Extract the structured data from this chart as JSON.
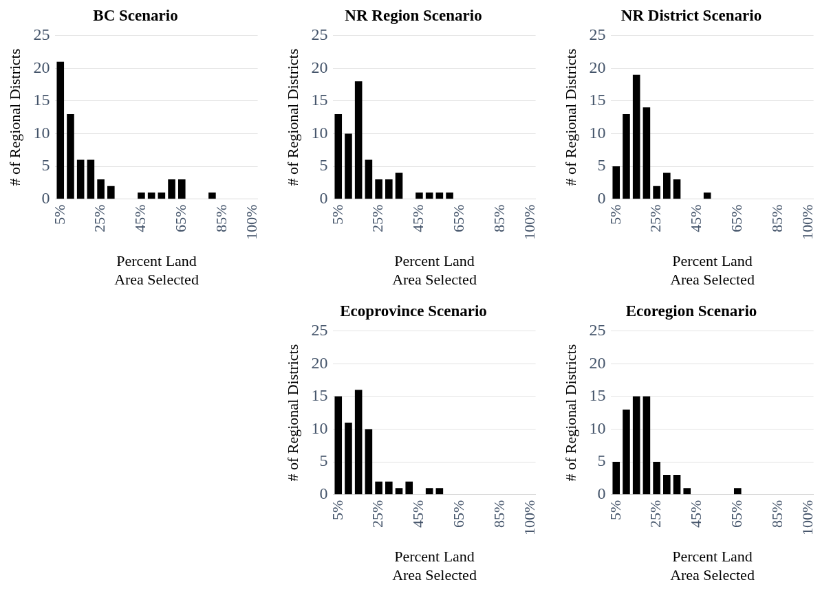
{
  "chart_data": [
    {
      "type": "bar",
      "title": "BC Scenario",
      "xlabel": "Percent Land Area Selected",
      "ylabel": "# of Regional Districts",
      "categories": [
        "5%",
        null,
        null,
        null,
        "25%",
        null,
        null,
        null,
        "45%",
        null,
        null,
        null,
        "65%",
        null,
        null,
        null,
        "85%",
        null,
        null,
        "100%"
      ],
      "values": [
        21,
        13,
        6,
        6,
        3,
        2,
        0,
        0,
        1,
        1,
        1,
        3,
        3,
        0,
        0,
        1,
        0,
        0,
        0,
        0
      ],
      "color": "#000000",
      "ylim": [
        0,
        25
      ],
      "yticks": [
        0,
        5,
        10,
        15,
        20,
        25
      ],
      "grid": "y"
    },
    {
      "type": "bar",
      "title": "NR Region Scenario",
      "xlabel": "Percent Land Area Selected",
      "ylabel": "# of Regional Districts",
      "categories": [
        "5%",
        null,
        null,
        null,
        "25%",
        null,
        null,
        null,
        "45%",
        null,
        null,
        null,
        "65%",
        null,
        null,
        null,
        "85%",
        null,
        null,
        "100%"
      ],
      "values": [
        13,
        10,
        18,
        6,
        3,
        3,
        4,
        0,
        1,
        1,
        1,
        1,
        0,
        0,
        0,
        0,
        0,
        0,
        0,
        0
      ],
      "color": "#000000",
      "ylim": [
        0,
        25
      ],
      "yticks": [
        0,
        5,
        10,
        15,
        20,
        25
      ],
      "grid": "y"
    },
    {
      "type": "bar",
      "title": "NR District Scenario",
      "xlabel": "Percent Land Area Selected",
      "ylabel": "# of Regional Districts",
      "categories": [
        "5%",
        null,
        null,
        null,
        "25%",
        null,
        null,
        null,
        "45%",
        null,
        null,
        null,
        "65%",
        null,
        null,
        null,
        "85%",
        null,
        null,
        "100%"
      ],
      "values": [
        5,
        13,
        19,
        14,
        2,
        4,
        3,
        0,
        0,
        1,
        0,
        0,
        0,
        0,
        0,
        0,
        0,
        0,
        0,
        0
      ],
      "color": "#000000",
      "ylim": [
        0,
        25
      ],
      "yticks": [
        0,
        5,
        10,
        15,
        20,
        25
      ],
      "grid": "y"
    },
    {
      "type": "bar",
      "title": "Ecoprovince Scenario",
      "xlabel": "Percent Land Area Selected",
      "ylabel": "# of Regional Districts",
      "categories": [
        "5%",
        null,
        null,
        null,
        "25%",
        null,
        null,
        null,
        "45%",
        null,
        null,
        null,
        "65%",
        null,
        null,
        null,
        "85%",
        null,
        null,
        "100%"
      ],
      "values": [
        15,
        11,
        16,
        10,
        2,
        2,
        1,
        2,
        0,
        1,
        1,
        0,
        0,
        0,
        0,
        0,
        0,
        0,
        0,
        0
      ],
      "color": "#000000",
      "ylim": [
        0,
        25
      ],
      "yticks": [
        0,
        5,
        10,
        15,
        20,
        25
      ],
      "grid": "y"
    },
    {
      "type": "bar",
      "title": "Ecoregion Scenario",
      "xlabel": "Percent Land Area Selected",
      "ylabel": "# of Regional Districts",
      "categories": [
        "5%",
        null,
        null,
        null,
        "25%",
        null,
        null,
        null,
        "45%",
        null,
        null,
        null,
        "65%",
        null,
        null,
        null,
        "85%",
        null,
        null,
        "100%"
      ],
      "values": [
        5,
        13,
        15,
        15,
        5,
        3,
        3,
        1,
        0,
        0,
        0,
        0,
        1,
        0,
        0,
        0,
        0,
        0,
        0,
        0
      ],
      "color": "#000000",
      "ylim": [
        0,
        25
      ],
      "yticks": [
        0,
        5,
        10,
        15,
        20,
        25
      ],
      "grid": "y"
    }
  ]
}
